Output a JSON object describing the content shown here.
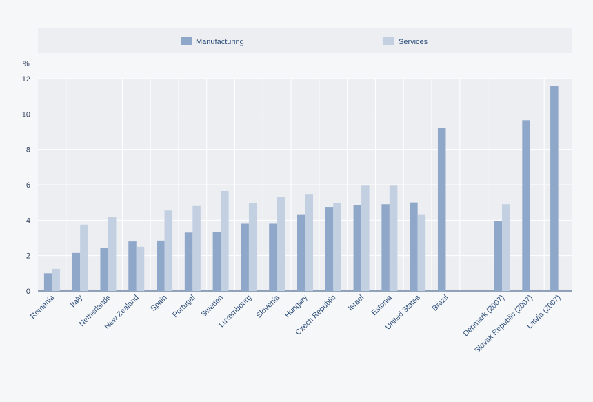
{
  "chart_data": {
    "type": "bar",
    "ylabel": "%",
    "ylim": [
      0,
      12
    ],
    "yticks": [
      0,
      2,
      4,
      6,
      8,
      10,
      12
    ],
    "grid": true,
    "legend_position": "top",
    "categories": [
      "Romania",
      "Italy",
      "Netherlands",
      "New Zealand",
      "Spain",
      "Portugal",
      "Sweden",
      "Luxembourg",
      "Slovenia",
      "Hungary",
      "Czech Republic",
      "Israel",
      "Estonia",
      "United States",
      "Brazil",
      "",
      "Denmark (2007)",
      "Slovak Republic (2007)",
      "Latvia (2007)"
    ],
    "series": [
      {
        "name": "Manufacturing",
        "color": "#8fa7c8",
        "values": [
          1.0,
          2.15,
          2.45,
          2.8,
          2.85,
          3.3,
          3.35,
          3.8,
          3.8,
          4.3,
          4.75,
          4.85,
          4.9,
          5.0,
          9.2,
          null,
          3.95,
          9.65,
          11.6
        ]
      },
      {
        "name": "Services",
        "color": "#c3d0e2",
        "values": [
          1.25,
          3.75,
          4.2,
          2.5,
          4.55,
          4.8,
          5.65,
          4.95,
          5.3,
          5.45,
          4.95,
          5.95,
          5.95,
          4.3,
          null,
          null,
          4.9,
          null,
          null
        ]
      }
    ]
  }
}
